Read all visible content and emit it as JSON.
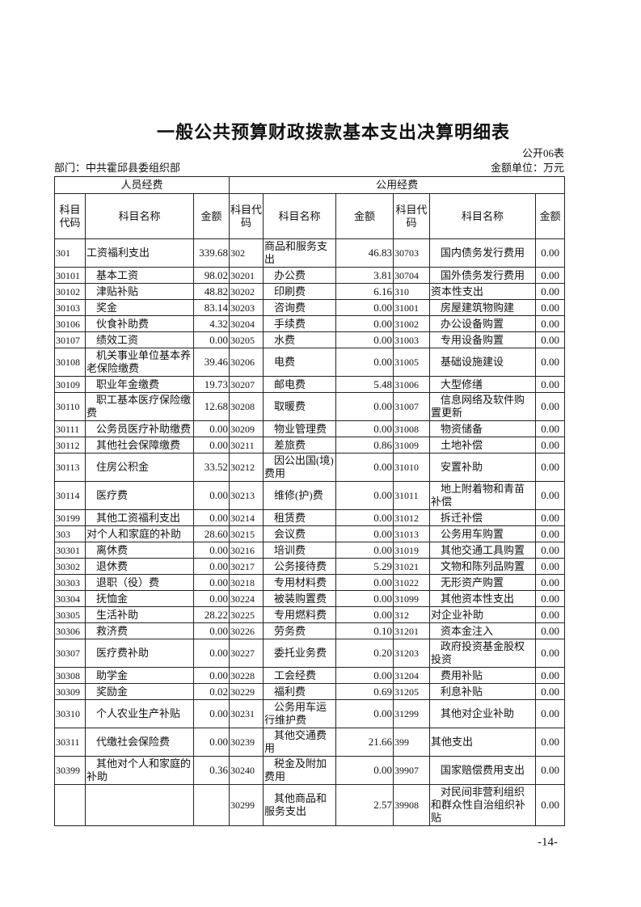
{
  "title": "一般公共预算财政拨款基本支出决算明细表",
  "form_no": "公开06表",
  "department": "部门：中共霍邱县委组织部",
  "unit": "金额单位：万元",
  "headers": {
    "group_personnel": "人员经费",
    "group_public": "公用经费",
    "code": "科目代码",
    "name": "科目名称",
    "amount": "金额"
  },
  "rows": [
    [
      [
        "301",
        "工资福利支出",
        "339.68"
      ],
      [
        "302",
        "商品和服务支出",
        "46.83"
      ],
      [
        "30703",
        "国内债务发行费用",
        "0.00"
      ]
    ],
    [
      [
        "30101",
        "基本工资",
        "98.02"
      ],
      [
        "30201",
        "办公费",
        "3.81"
      ],
      [
        "30704",
        "国外债务发行费用",
        "0.00"
      ]
    ],
    [
      [
        "30102",
        "津贴补贴",
        "48.82"
      ],
      [
        "30202",
        "印刷费",
        "6.16"
      ],
      [
        "310",
        "资本性支出",
        "0.00"
      ]
    ],
    [
      [
        "30103",
        "奖金",
        "83.14"
      ],
      [
        "30203",
        "咨询费",
        "0.00"
      ],
      [
        "31001",
        "房屋建筑物购建",
        "0.00"
      ]
    ],
    [
      [
        "30106",
        "伙食补助费",
        "4.32"
      ],
      [
        "30204",
        "手续费",
        "0.00"
      ],
      [
        "31002",
        "办公设备购置",
        "0.00"
      ]
    ],
    [
      [
        "30107",
        "绩效工资",
        "0.00"
      ],
      [
        "30205",
        "水费",
        "0.00"
      ],
      [
        "31003",
        "专用设备购置",
        "0.00"
      ]
    ],
    [
      [
        "30108",
        "机关事业单位基本养老保险缴费",
        "39.46"
      ],
      [
        "30206",
        "电费",
        "0.00"
      ],
      [
        "31005",
        "基础设施建设",
        "0.00"
      ]
    ],
    [
      [
        "30109",
        "职业年金缴费",
        "19.73"
      ],
      [
        "30207",
        "邮电费",
        "5.48"
      ],
      [
        "31006",
        "大型修缮",
        "0.00"
      ]
    ],
    [
      [
        "30110",
        "职工基本医疗保险缴费",
        "12.68"
      ],
      [
        "30208",
        "取暖费",
        "0.00"
      ],
      [
        "31007",
        "信息网络及软件购置更新",
        "0.00"
      ]
    ],
    [
      [
        "30111",
        "公务员医疗补助缴费",
        "0.00"
      ],
      [
        "30209",
        "物业管理费",
        "0.00"
      ],
      [
        "31008",
        "物资储备",
        "0.00"
      ]
    ],
    [
      [
        "30112",
        "其他社会保障缴费",
        "0.00"
      ],
      [
        "30211",
        "差旅费",
        "0.86"
      ],
      [
        "31009",
        "土地补偿",
        "0.00"
      ]
    ],
    [
      [
        "30113",
        "住房公积金",
        "33.52"
      ],
      [
        "30212",
        "因公出国(境)费用",
        "0.00"
      ],
      [
        "31010",
        "安置补助",
        "0.00"
      ]
    ],
    [
      [
        "30114",
        "医疗费",
        "0.00"
      ],
      [
        "30213",
        "维修(护)费",
        "0.00"
      ],
      [
        "31011",
        "地上附着物和青苗补偿",
        "0.00"
      ]
    ],
    [
      [
        "30199",
        "其他工资福利支出",
        "0.00"
      ],
      [
        "30214",
        "租赁费",
        "0.00"
      ],
      [
        "31012",
        "拆迁补偿",
        "0.00"
      ]
    ],
    [
      [
        "303",
        "对个人和家庭的补助",
        "28.60"
      ],
      [
        "30215",
        "会议费",
        "0.00"
      ],
      [
        "31013",
        "公务用车购置",
        "0.00"
      ]
    ],
    [
      [
        "30301",
        "离休费",
        "0.00"
      ],
      [
        "30216",
        "培训费",
        "0.00"
      ],
      [
        "31019",
        "其他交通工具购置",
        "0.00"
      ]
    ],
    [
      [
        "30302",
        "退休费",
        "0.00"
      ],
      [
        "30217",
        "公务接待费",
        "5.29"
      ],
      [
        "31021",
        "文物和陈列品购置",
        "0.00"
      ]
    ],
    [
      [
        "30303",
        "退职（役）费",
        "0.00"
      ],
      [
        "30218",
        "专用材料费",
        "0.00"
      ],
      [
        "31022",
        "无形资产购置",
        "0.00"
      ]
    ],
    [
      [
        "30304",
        "抚恤金",
        "0.00"
      ],
      [
        "30224",
        "被装购置费",
        "0.00"
      ],
      [
        "31099",
        "其他资本性支出",
        "0.00"
      ]
    ],
    [
      [
        "30305",
        "生活补助",
        "28.22"
      ],
      [
        "30225",
        "专用燃料费",
        "0.00"
      ],
      [
        "312",
        "对企业补助",
        "0.00"
      ]
    ],
    [
      [
        "30306",
        "救济费",
        "0.00"
      ],
      [
        "30226",
        "劳务费",
        "0.10"
      ],
      [
        "31201",
        "资本金注入",
        "0.00"
      ]
    ],
    [
      [
        "30307",
        "医疗费补助",
        "0.00"
      ],
      [
        "30227",
        "委托业务费",
        "0.20"
      ],
      [
        "31203",
        "政府投资基金股权投资",
        "0.00"
      ]
    ],
    [
      [
        "30308",
        "助学金",
        "0.00"
      ],
      [
        "30228",
        "工会经费",
        "0.00"
      ],
      [
        "31204",
        "费用补贴",
        "0.00"
      ]
    ],
    [
      [
        "30309",
        "奖励金",
        "0.02"
      ],
      [
        "30229",
        "福利费",
        "0.69"
      ],
      [
        "31205",
        "利息补贴",
        "0.00"
      ]
    ],
    [
      [
        "30310",
        "个人农业生产补贴",
        "0.00"
      ],
      [
        "30231",
        "公务用车运行维护费",
        "0.00"
      ],
      [
        "31299",
        "其他对企业补助",
        "0.00"
      ]
    ],
    [
      [
        "30311",
        "代缴社会保险费",
        "0.00"
      ],
      [
        "30239",
        "其他交通费用",
        "21.66"
      ],
      [
        "399",
        "其他支出",
        "0.00"
      ]
    ],
    [
      [
        "30399",
        "其他对个人和家庭的补助",
        "0.36"
      ],
      [
        "30240",
        "税金及附加费用",
        "0.00"
      ],
      [
        "39907",
        "国家赔偿费用支出",
        "0.00"
      ]
    ],
    [
      [
        "",
        "",
        ""
      ],
      [
        "30299",
        "其他商品和服务支出",
        "2.57"
      ],
      [
        "39908",
        "对民间非营利组织和群众性自治组织补贴",
        "0.00"
      ]
    ]
  ],
  "page_number": "-14-"
}
